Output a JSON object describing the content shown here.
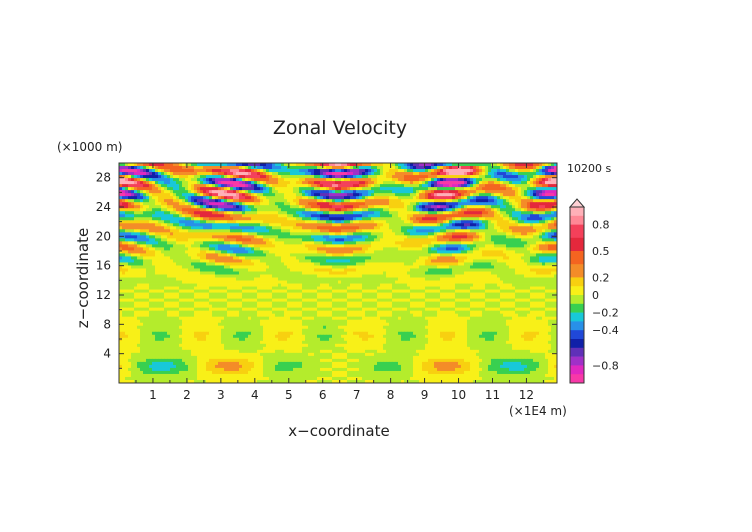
{
  "chart_data": {
    "type": "heatmap",
    "title": "Zonal Velocity",
    "xlabel": "x−coordinate",
    "ylabel": "z−coordinate",
    "x_unit": "(×1E4 m)",
    "y_unit": "(×1000 m)",
    "time_label": "10200 s",
    "xlim": [
      0,
      12.9
    ],
    "ylim": [
      0,
      30
    ],
    "x_ticks": [
      "1",
      "2",
      "3",
      "4",
      "5",
      "6",
      "7",
      "8",
      "9",
      "10",
      "11",
      "12"
    ],
    "y_ticks": [
      "4",
      "8",
      "12",
      "16",
      "20",
      "24",
      "28"
    ],
    "colorbar": {
      "labels": [
        "0.8",
        "0.5",
        "0.2",
        "0",
        "−0.2",
        "−0.4",
        "−0.8"
      ],
      "label_values": [
        0.8,
        0.5,
        0.2,
        0,
        -0.2,
        -0.4,
        -0.8
      ],
      "bands": [
        {
          "lo": 0.9,
          "hi": 1.0,
          "color": "#ffb0b8"
        },
        {
          "lo": 0.8,
          "hi": 0.9,
          "color": "#ff8896"
        },
        {
          "lo": 0.65,
          "hi": 0.8,
          "color": "#f4405a"
        },
        {
          "lo": 0.5,
          "hi": 0.65,
          "color": "#e4283c"
        },
        {
          "lo": 0.35,
          "hi": 0.5,
          "color": "#f46420"
        },
        {
          "lo": 0.2,
          "hi": 0.35,
          "color": "#f48c28"
        },
        {
          "lo": 0.1,
          "hi": 0.2,
          "color": "#f8d010"
        },
        {
          "lo": 0.0,
          "hi": 0.1,
          "color": "#f8f018"
        },
        {
          "lo": -0.1,
          "hi": 0.0,
          "color": "#b4ec2c"
        },
        {
          "lo": -0.2,
          "hi": -0.1,
          "color": "#38d050"
        },
        {
          "lo": -0.3,
          "hi": -0.2,
          "color": "#18c8d8"
        },
        {
          "lo": -0.4,
          "hi": -0.3,
          "color": "#2890e8"
        },
        {
          "lo": -0.5,
          "hi": -0.4,
          "color": "#2048d8"
        },
        {
          "lo": -0.6,
          "hi": -0.5,
          "color": "#1020a8"
        },
        {
          "lo": -0.7,
          "hi": -0.6,
          "color": "#6030b8"
        },
        {
          "lo": -0.8,
          "hi": -0.7,
          "color": "#a030c8"
        },
        {
          "lo": -0.9,
          "hi": -0.8,
          "color": "#e028c0"
        },
        {
          "lo": -1.0,
          "hi": -0.9,
          "color": "#f838a8"
        }
      ],
      "overflow_top": true
    }
  }
}
